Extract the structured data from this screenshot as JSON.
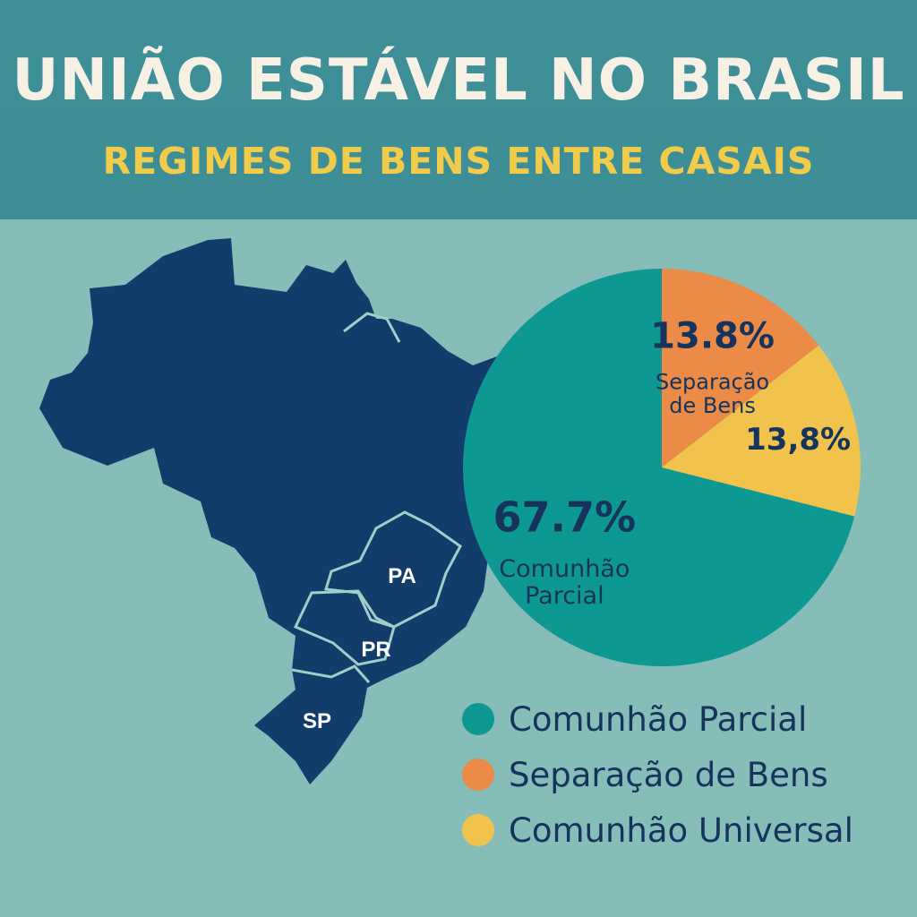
{
  "header": {
    "title": "UNIÃO ESTÁVEL NO BRASIL",
    "subtitle": "REGIMES DE BENS ENTRE CASAIS"
  },
  "map": {
    "region_labels": [
      "PA",
      "PR",
      "SP"
    ],
    "fill": "#123d6a",
    "border": "#9fcfc8"
  },
  "chart_data": {
    "type": "pie",
    "title": "",
    "slices": [
      {
        "label": "Comunhão Parcial",
        "value": 67.7,
        "percent_label": "67.7%",
        "name_label": "Comunhão\nParcial",
        "color": "#0e9892"
      },
      {
        "label": "Separação de Bens",
        "value": 13.8,
        "percent_label": "13.8%",
        "name_label": "Separação\nde Bens",
        "color": "#ec8a48"
      },
      {
        "label": "Comunhão Universal",
        "value": 13.8,
        "percent_label": "13,8%",
        "name_label": "",
        "color": "#f1c24c"
      }
    ],
    "legend_position": "bottom-right"
  },
  "legend": {
    "items": [
      {
        "label": "Comunhão Parcial",
        "color": "#0e9892"
      },
      {
        "label": "Separação de Bens",
        "color": "#ec8a48"
      },
      {
        "label": "Comunhão Universal",
        "color": "#f1c24c"
      }
    ]
  }
}
